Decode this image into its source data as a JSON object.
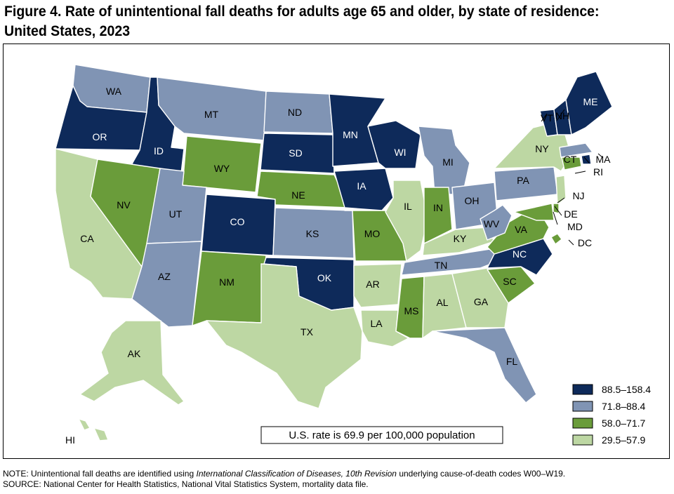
{
  "title": {
    "line1": "Figure 4. Rate of unintentional fall deaths for adults age 65 and older, by state of residence:",
    "line2": "United States, 2023"
  },
  "legend": [
    {
      "label": "88.5–158.4",
      "color": "#0e2a5a"
    },
    {
      "label": "71.8–88.4",
      "color": "#8094b4"
    },
    {
      "label": "58.0–71.7",
      "color": "#6a9c3a"
    },
    {
      "label": "29.5–57.9",
      "color": "#bdd7a3"
    }
  ],
  "us_rate": "U.S. rate is 69.9 per 100,000 population",
  "note": {
    "prefix": "NOTE: Unintentional fall deaths are identified using ",
    "italic": "International Classification of Diseases, 10th Revision",
    "suffix": " underlying cause-of-death codes W00–W19."
  },
  "source": "SOURCE: National Center for Health Statistics, National Vital Statistics System, mortality data file.",
  "states": [
    {
      "abbr": "WA",
      "cls": 2
    },
    {
      "abbr": "OR",
      "cls": 1
    },
    {
      "abbr": "CA",
      "cls": 4
    },
    {
      "abbr": "ID",
      "cls": 1
    },
    {
      "abbr": "NV",
      "cls": 3
    },
    {
      "abbr": "MT",
      "cls": 2
    },
    {
      "abbr": "WY",
      "cls": 3
    },
    {
      "abbr": "UT",
      "cls": 2
    },
    {
      "abbr": "AZ",
      "cls": 2
    },
    {
      "abbr": "CO",
      "cls": 1
    },
    {
      "abbr": "NM",
      "cls": 3
    },
    {
      "abbr": "ND",
      "cls": 2
    },
    {
      "abbr": "SD",
      "cls": 1
    },
    {
      "abbr": "NE",
      "cls": 3
    },
    {
      "abbr": "KS",
      "cls": 2
    },
    {
      "abbr": "OK",
      "cls": 1
    },
    {
      "abbr": "TX",
      "cls": 4
    },
    {
      "abbr": "MN",
      "cls": 1
    },
    {
      "abbr": "IA",
      "cls": 1
    },
    {
      "abbr": "MO",
      "cls": 3
    },
    {
      "abbr": "AR",
      "cls": 4
    },
    {
      "abbr": "LA",
      "cls": 4
    },
    {
      "abbr": "WI",
      "cls": 1
    },
    {
      "abbr": "IL",
      "cls": 4
    },
    {
      "abbr": "MI",
      "cls": 2
    },
    {
      "abbr": "IN",
      "cls": 3
    },
    {
      "abbr": "OH",
      "cls": 2
    },
    {
      "abbr": "KY",
      "cls": 4
    },
    {
      "abbr": "TN",
      "cls": 2
    },
    {
      "abbr": "MS",
      "cls": 3
    },
    {
      "abbr": "AL",
      "cls": 4
    },
    {
      "abbr": "GA",
      "cls": 4
    },
    {
      "abbr": "FL",
      "cls": 2
    },
    {
      "abbr": "SC",
      "cls": 3
    },
    {
      "abbr": "NC",
      "cls": 1
    },
    {
      "abbr": "VA",
      "cls": 3
    },
    {
      "abbr": "WV",
      "cls": 2
    },
    {
      "abbr": "PA",
      "cls": 2
    },
    {
      "abbr": "NY",
      "cls": 4
    },
    {
      "abbr": "VT",
      "cls": 1
    },
    {
      "abbr": "NH",
      "cls": 1
    },
    {
      "abbr": "ME",
      "cls": 1
    },
    {
      "abbr": "MA",
      "cls": 2
    },
    {
      "abbr": "RI",
      "cls": 1
    },
    {
      "abbr": "CT",
      "cls": 3
    },
    {
      "abbr": "NJ",
      "cls": 4
    },
    {
      "abbr": "DE",
      "cls": 3
    },
    {
      "abbr": "MD",
      "cls": 3
    },
    {
      "abbr": "DC",
      "cls": 3
    },
    {
      "abbr": "AK",
      "cls": 4
    },
    {
      "abbr": "HI",
      "cls": 4
    }
  ]
}
